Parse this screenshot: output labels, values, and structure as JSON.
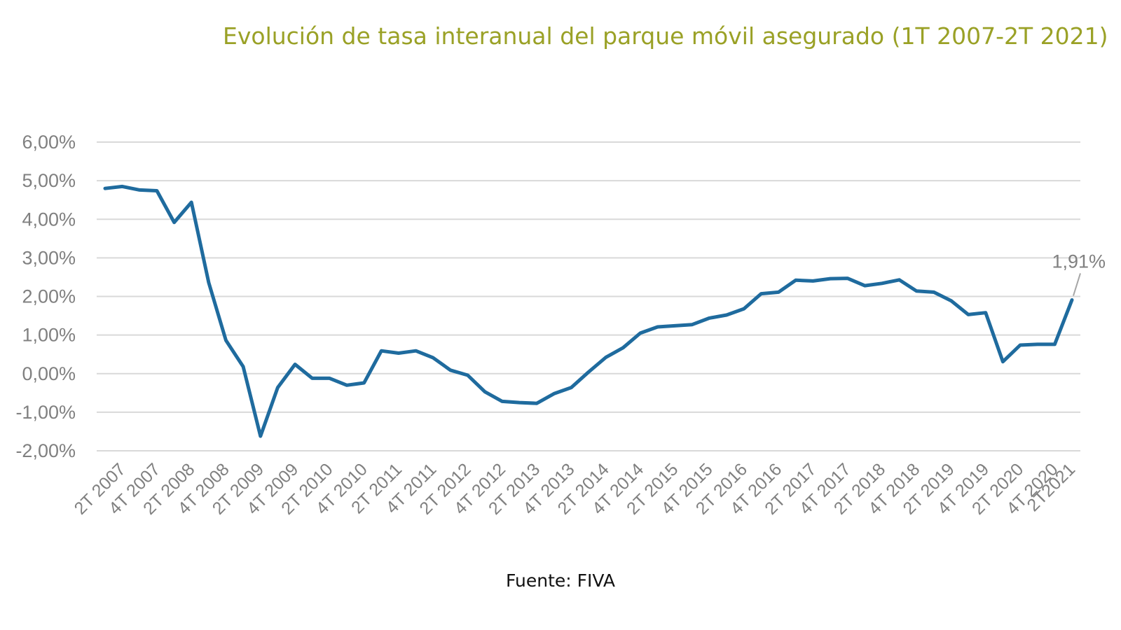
{
  "chart_data": {
    "type": "line",
    "title": "Evolución de tasa interanual del parque móvil asegurado (1T 2007-2T 2021)",
    "source": "Fuente: FIVA",
    "colors": {
      "title": "#9aa126",
      "line": "#1f6b9e",
      "grid": "#d9d9d9",
      "text": "#808080"
    },
    "grid": true,
    "legend": "none",
    "ylim": [
      -2,
      6
    ],
    "y_ticks": [
      6,
      5,
      4,
      3,
      2,
      1,
      0,
      -1,
      -2
    ],
    "y_tick_labels": [
      "6,00%",
      "5,00%",
      "4,00%",
      "3,00%",
      "2,00%",
      "1,00%",
      "0,00%",
      "-1,00%",
      "-2,00%"
    ],
    "x_tick_labels": [
      "2T 2007",
      "4T 2007",
      "2T 2008",
      "4T 2008",
      "2T 2009",
      "4T 2009",
      "2T 2010",
      "4T 2010",
      "2T 2011",
      "4T 2011",
      "2T 2012",
      "4T 2012",
      "2T 2013",
      "4T 2013",
      "2T 2014",
      "4T 2014",
      "2T 2015",
      "4T 2015",
      "2T 2016",
      "4T 2016",
      "2T 2017",
      "4T 2017",
      "2T 2018",
      "4T 2018",
      "2T 2019",
      "4T 2019",
      "2T 2020",
      "4T 2020",
      "2T2021"
    ],
    "series": [
      {
        "values": [
          4.8,
          4.85,
          4.76,
          4.74,
          3.92,
          4.44,
          2.36,
          0.86,
          0.18,
          -1.62,
          -0.36,
          0.24,
          -0.12,
          -0.12,
          -0.3,
          -0.24,
          0.59,
          0.53,
          0.59,
          0.41,
          0.09,
          -0.04,
          -0.47,
          -0.72,
          -0.75,
          -0.77,
          -0.52,
          -0.36,
          0.04,
          0.42,
          0.67,
          1.05,
          1.21,
          1.24,
          1.27,
          1.44,
          1.52,
          1.68,
          2.07,
          2.11,
          2.42,
          2.4,
          2.46,
          2.47,
          2.28,
          2.34,
          2.43,
          2.14,
          2.11,
          1.89,
          1.53,
          1.58,
          0.31,
          0.74,
          0.76,
          0.76,
          1.91
        ]
      }
    ],
    "annotations": [
      {
        "text": "1,91%",
        "point_index": 56
      }
    ]
  }
}
